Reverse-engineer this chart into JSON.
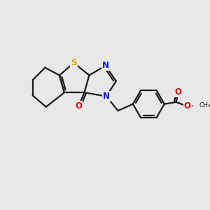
{
  "bg_color": "#e8e8e8",
  "bond_color": "#1a1a1a",
  "S_color": "#ccaa00",
  "N_color": "#1111cc",
  "O_color": "#cc1111",
  "line_width": 1.6,
  "font_size_atom": 8.5,
  "xlim": [
    0,
    10
  ],
  "ylim": [
    0,
    10
  ]
}
